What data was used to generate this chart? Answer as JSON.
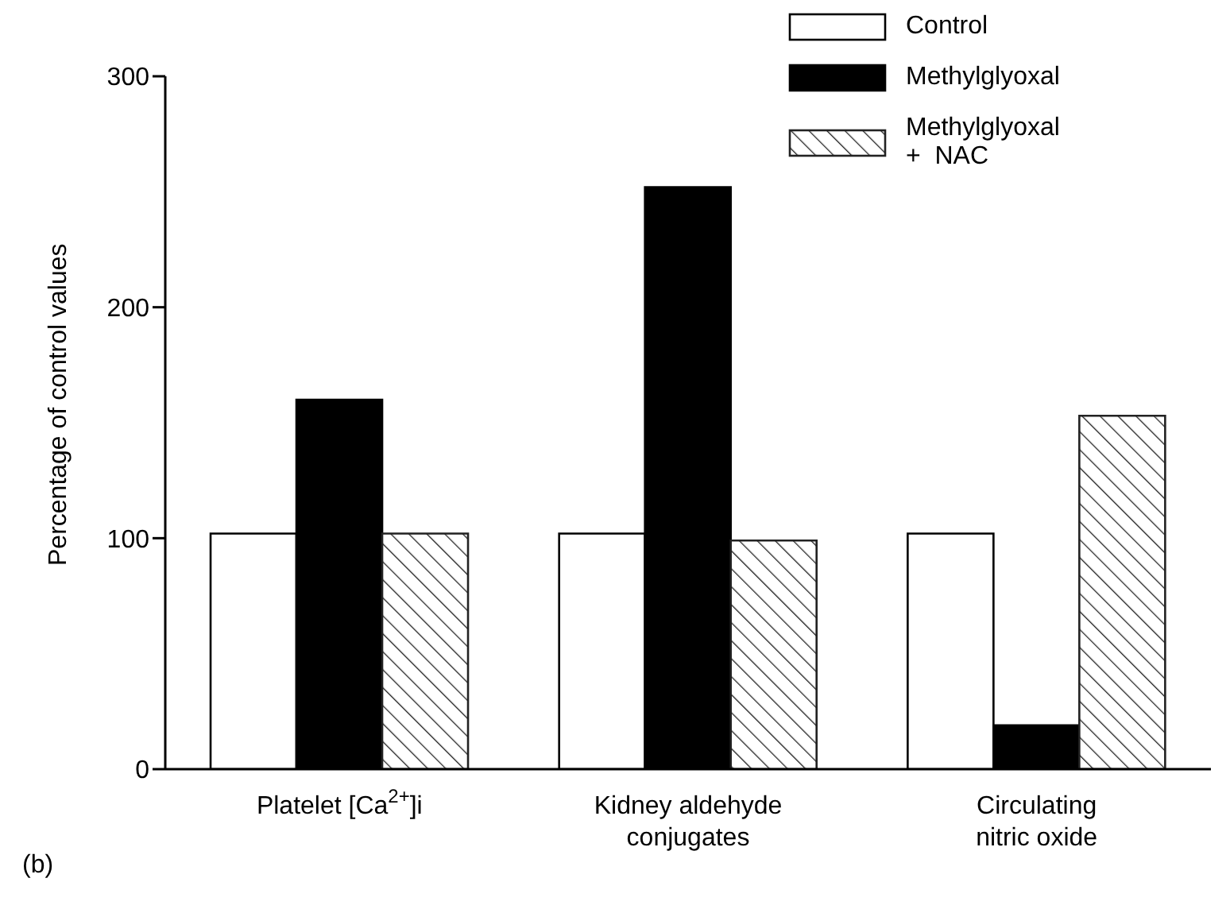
{
  "chart_data": {
    "type": "bar",
    "ylabel": "Percentage of control values",
    "categories": [
      "Platelet [Ca$^{2+}$]i",
      "Kidney aldehyde\nconjugates",
      "Circulating\nnitric oxide"
    ],
    "series": [
      {
        "name": "Control",
        "color": "#ffffff",
        "values": [
          102,
          102,
          102
        ]
      },
      {
        "name": "Methylglyoxal",
        "color": "#000000",
        "values": [
          160,
          252,
          19
        ]
      },
      {
        "name": "Methylglyoxal\n+  NAC",
        "color": "#222222",
        "values": [
          102,
          99,
          153
        ]
      }
    ],
    "ylim": [
      0,
      300
    ],
    "yticks": [
      0,
      100,
      200,
      300
    ],
    "grid": false,
    "legend": "top right",
    "annotations": [
      "(b)"
    ]
  }
}
